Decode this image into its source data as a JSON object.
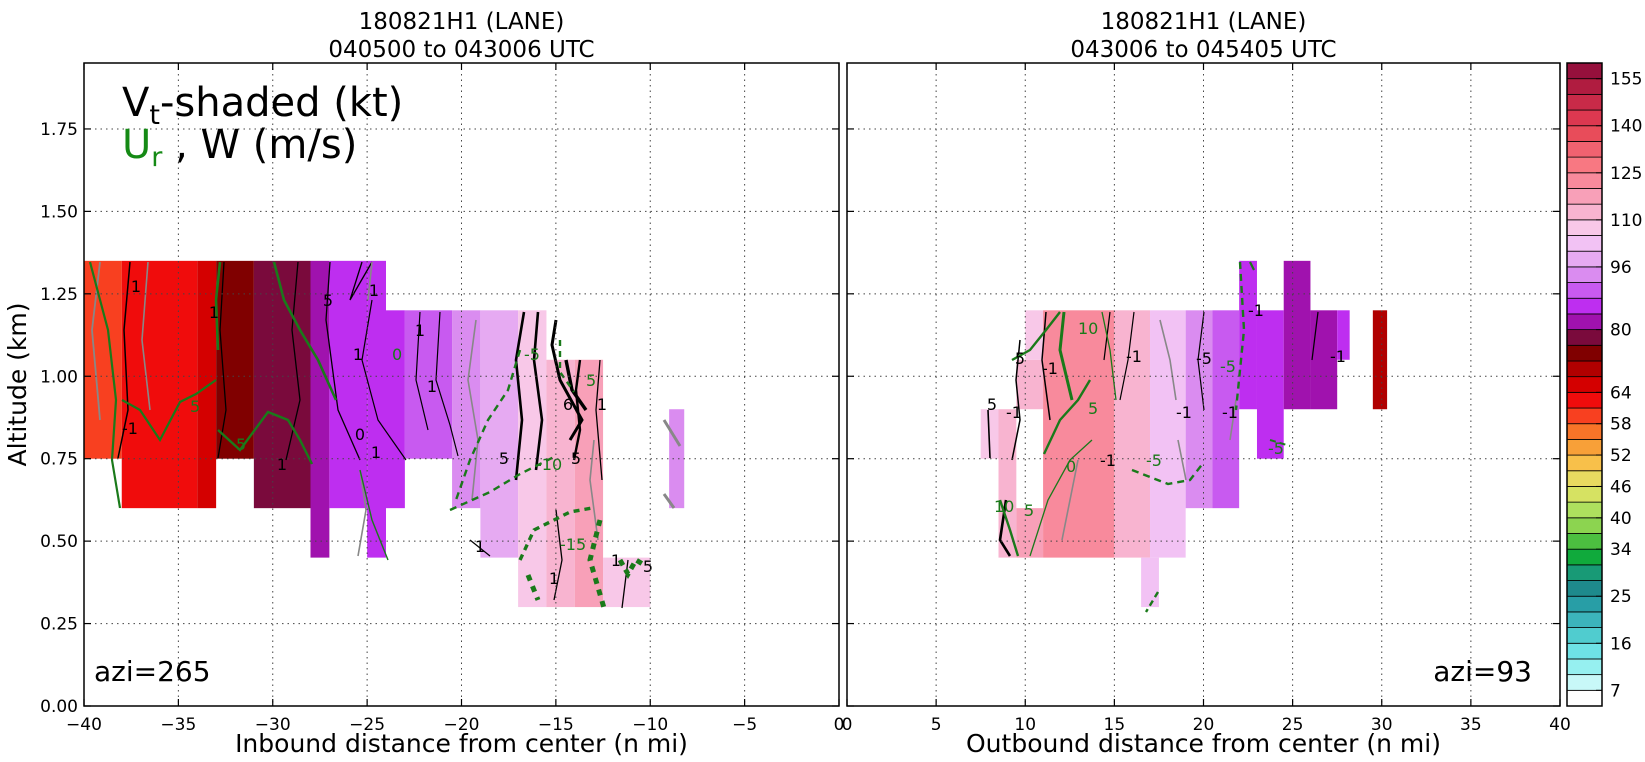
{
  "chart_data": [
    {
      "type": "heatmap",
      "title": "180821H1 (LANE)",
      "subtitle": "040500 to 043006 UTC",
      "xlabel": "Inbound distance from center (n mi)",
      "ylabel": "Altitude (km)",
      "xlim": [
        -40,
        0
      ],
      "ylim": [
        0,
        1.95
      ],
      "xticks": [
        -40,
        -35,
        -30,
        -25,
        -20,
        -15,
        -10,
        -5,
        0
      ],
      "xtick_labels": [
        "−40",
        "−35",
        "−30",
        "−25",
        "−20",
        "−15",
        "−10",
        "−5",
        "0"
      ],
      "yticks": [
        0,
        0.25,
        0.5,
        0.75,
        1.0,
        1.25,
        1.5,
        1.75
      ],
      "ytick_labels": [
        "0.00",
        "0.25",
        "0.50",
        "0.75",
        "1.00",
        "1.25",
        "1.50",
        "1.75"
      ],
      "grid": true,
      "annotation": "azi=265",
      "legend_lines": {
        "line1_main": "V",
        "line1_sub": "t",
        "line1_rest": "-shaded (kt)",
        "line2_green_main": "U",
        "line2_green_sub": "r",
        "line2_rest": " , W (m/s)"
      },
      "cells": [
        {
          "x0": -40,
          "x1": -38,
          "y0": 0.75,
          "y1": 1.35,
          "value": 60
        },
        {
          "x0": -38,
          "x1": -36,
          "y0": 0.6,
          "y1": 1.35,
          "value": 62
        },
        {
          "x0": -36,
          "x1": -34,
          "y0": 0.6,
          "y1": 1.35,
          "value": 63
        },
        {
          "x0": -34,
          "x1": -33,
          "y0": 0.6,
          "y1": 1.35,
          "value": 66
        },
        {
          "x0": -33,
          "x1": -31,
          "y0": 0.75,
          "y1": 1.35,
          "value": 75
        },
        {
          "x0": -31,
          "x1": -28,
          "y0": 0.6,
          "y1": 1.35,
          "value": 77
        },
        {
          "x0": -28,
          "x1": -27,
          "y0": 0.45,
          "y1": 1.35,
          "value": 80
        },
        {
          "x0": -27,
          "x1": -25,
          "y0": 0.6,
          "y1": 1.35,
          "value": 84
        },
        {
          "x0": -25,
          "x1": -24,
          "y0": 0.45,
          "y1": 1.35,
          "value": 85
        },
        {
          "x0": -24,
          "x1": -23,
          "y0": 0.6,
          "y1": 1.2,
          "value": 86
        },
        {
          "x0": -23,
          "x1": -20.5,
          "y0": 0.75,
          "y1": 1.2,
          "value": 88
        },
        {
          "x0": -20.5,
          "x1": -19,
          "y0": 0.6,
          "y1": 1.2,
          "value": 94
        },
        {
          "x0": -19,
          "x1": -17,
          "y0": 0.45,
          "y1": 1.2,
          "value": 99
        },
        {
          "x0": -17,
          "x1": -15.5,
          "y0": 0.3,
          "y1": 1.2,
          "value": 106
        },
        {
          "x0": -15.5,
          "x1": -14,
          "y0": 0.3,
          "y1": 1.05,
          "value": 110
        },
        {
          "x0": -14,
          "x1": -12.5,
          "y0": 0.3,
          "y1": 1.05,
          "value": 118
        },
        {
          "x0": -12.5,
          "x1": -10,
          "y0": 0.3,
          "y1": 0.45,
          "value": 108
        },
        {
          "x0": -9,
          "x1": -8.2,
          "y0": 0.6,
          "y1": 0.9,
          "value": 95
        }
      ]
    },
    {
      "type": "heatmap",
      "title": "180821H1 (LANE)",
      "subtitle": "043006 to 045405 UTC",
      "xlabel": "Outbound distance from center (n mi)",
      "ylabel": "",
      "xlim": [
        0,
        40
      ],
      "ylim": [
        0,
        1.95
      ],
      "xticks": [
        0,
        5,
        10,
        15,
        20,
        25,
        30,
        35,
        40
      ],
      "xtick_labels": [
        "0",
        "5",
        "10",
        "15",
        "20",
        "25",
        "30",
        "35",
        "40"
      ],
      "grid": true,
      "annotation": "azi=93",
      "cells": [
        {
          "x0": 7.5,
          "x1": 8.5,
          "y0": 0.75,
          "y1": 0.9,
          "value": 108
        },
        {
          "x0": 8.5,
          "x1": 9.5,
          "y0": 0.45,
          "y1": 0.9,
          "value": 110
        },
        {
          "x0": 9.5,
          "x1": 11,
          "y0": 0.45,
          "y1": 0.6,
          "value": 118
        },
        {
          "x0": 9.5,
          "x1": 11,
          "y0": 0.9,
          "y1": 1.05,
          "value": 110
        },
        {
          "x0": 10,
          "x1": 11,
          "y0": 1.05,
          "y1": 1.2,
          "value": 108
        },
        {
          "x0": 11,
          "x1": 15,
          "y0": 0.45,
          "y1": 1.2,
          "value": 122
        },
        {
          "x0": 15,
          "x1": 17,
          "y0": 0.45,
          "y1": 1.2,
          "value": 112
        },
        {
          "x0": 16.5,
          "x1": 17.5,
          "y0": 0.3,
          "y1": 0.45,
          "value": 104
        },
        {
          "x0": 17,
          "x1": 19,
          "y0": 0.45,
          "y1": 1.2,
          "value": 100
        },
        {
          "x0": 19,
          "x1": 20.5,
          "y0": 0.6,
          "y1": 1.2,
          "value": 92
        },
        {
          "x0": 20.5,
          "x1": 22,
          "y0": 0.6,
          "y1": 1.2,
          "value": 88
        },
        {
          "x0": 22,
          "x1": 23,
          "y0": 0.9,
          "y1": 1.35,
          "value": 85
        },
        {
          "x0": 23,
          "x1": 24.5,
          "y0": 0.75,
          "y1": 1.2,
          "value": 84
        },
        {
          "x0": 24.5,
          "x1": 26,
          "y0": 0.9,
          "y1": 1.35,
          "value": 82
        },
        {
          "x0": 26,
          "x1": 27.5,
          "y0": 0.9,
          "y1": 1.2,
          "value": 83
        },
        {
          "x0": 27.5,
          "x1": 28.2,
          "y0": 1.05,
          "y1": 1.2,
          "value": 84
        },
        {
          "x0": 29.5,
          "x1": 30.3,
          "y0": 0.9,
          "y1": 1.2,
          "value": 70
        }
      ]
    }
  ],
  "colorbar": {
    "levels": [
      4,
      7,
      10,
      13,
      16,
      19,
      22,
      25,
      28,
      31,
      34,
      37,
      40,
      43,
      46,
      49,
      52,
      55,
      58,
      61,
      64,
      68,
      72,
      76,
      80,
      84,
      88,
      92,
      96,
      100,
      105,
      110,
      115,
      120,
      125,
      130,
      135,
      140,
      145,
      150,
      155,
      160
    ],
    "colors": [
      "#ffffff",
      "#c8f8f8",
      "#96f0f0",
      "#6ee2e6",
      "#50cccf",
      "#3cb4bc",
      "#289ea6",
      "#1e8a8c",
      "#189a76",
      "#10aa3c",
      "#4cbf40",
      "#8cd450",
      "#aee05e",
      "#d6e262",
      "#e8da60",
      "#f8c04a",
      "#f8a038",
      "#f87428",
      "#f84020",
      "#f00c0c",
      "#d40000",
      "#b00000",
      "#800000",
      "#7a0a3c",
      "#a012ae",
      "#be2ef0",
      "#c85af0",
      "#da8cf0",
      "#e6aaf2",
      "#f2c2f4",
      "#f8c8e8",
      "#f8b4d0",
      "#f8a0b8",
      "#f88a9c",
      "#f87882",
      "#f06270",
      "#e84c5a",
      "#dc3850",
      "#c82a48",
      "#b01c40",
      "#96103c"
    ],
    "labels": [
      "7",
      "16",
      "25",
      "34",
      "40",
      "46",
      "52",
      "58",
      "64",
      "80",
      "96",
      "110",
      "125",
      "140",
      "155"
    ]
  }
}
